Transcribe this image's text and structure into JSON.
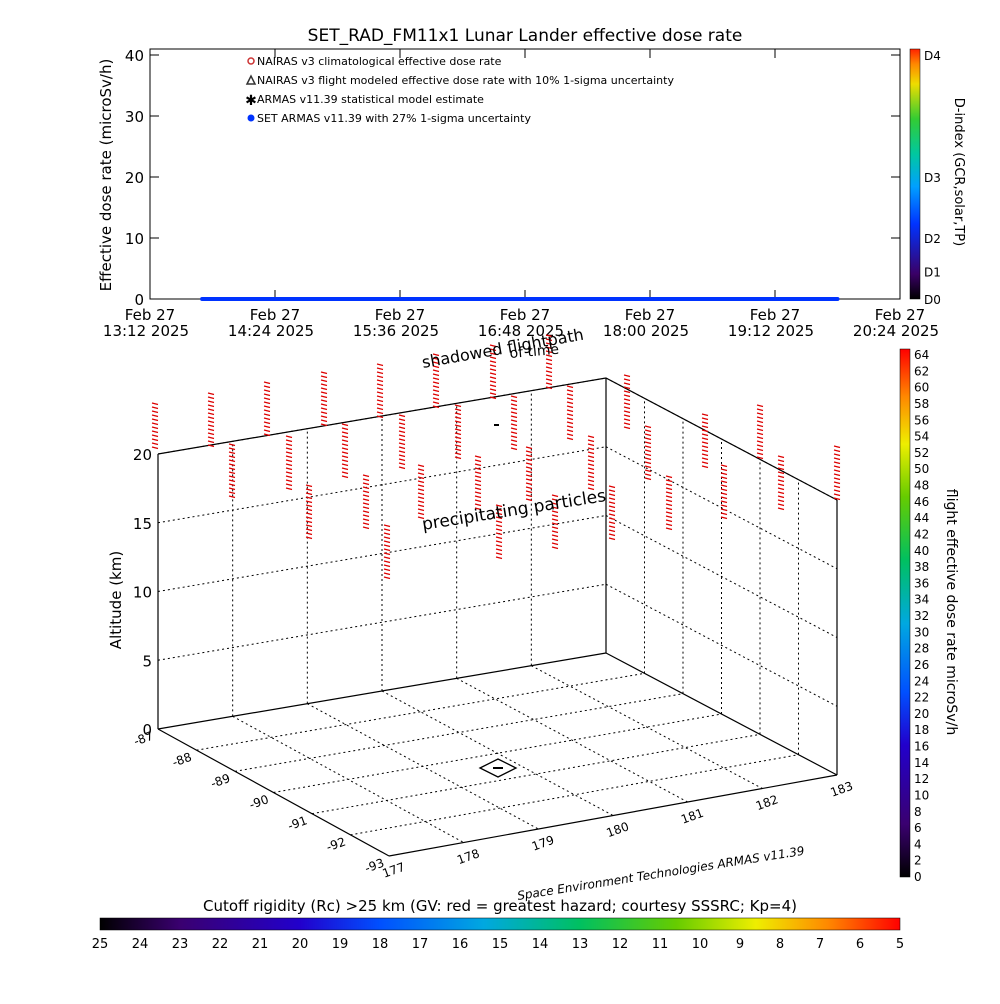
{
  "chart_data": [
    {
      "type": "line",
      "title": "SET_RAD_FM11x1  Lunar Lander effective dose rate",
      "ylabel": "Effective dose rate (microSv/h)",
      "ylim": [
        0,
        40
      ],
      "y_ticks": [
        "0",
        "10",
        "20",
        "30",
        "40"
      ],
      "x_ticks": [
        {
          "day": "Feb 27",
          "time": "13:12 2025"
        },
        {
          "day": "Feb 27",
          "time": "14:24 2025"
        },
        {
          "day": "Feb 27",
          "time": "15:36 2025"
        },
        {
          "day": "Feb 27",
          "time": "16:48 2025"
        },
        {
          "day": "Feb 27",
          "time": "18:00 2025"
        },
        {
          "day": "Feb 27",
          "time": "19:12 2025"
        },
        {
          "day": "Feb 27",
          "time": "20:24 2025"
        }
      ],
      "legend_placement": "top-left",
      "legend": [
        {
          "label": "NAIRAS v3 climatological effective dose rate",
          "color": "#cc3333",
          "marker": "circle"
        },
        {
          "label": "NAIRAS v3 flight modeled effective dose rate with 10% 1-sigma uncertainty",
          "color": "#333333",
          "marker": "triangle"
        },
        {
          "label": "ARMAS v11.39 statistical model estimate",
          "color": "#33cc33",
          "marker": "asterisk"
        },
        {
          "label": "SET ARMAS v11.39 with 27% 1-sigma uncertainty",
          "color": "#0033ff",
          "marker": "dot"
        }
      ],
      "series": [
        {
          "name": "SET ARMAS v11.39 with 27% 1-sigma uncertainty",
          "x": [
            "13:42",
            "19:48"
          ],
          "values": [
            0,
            0
          ]
        }
      ],
      "dindex_colorbar": {
        "title": "D-index (GCR,solar,TP)",
        "labels": [
          {
            "label": "D4",
            "value": 40
          },
          {
            "label": "D3",
            "value": 20
          },
          {
            "label": "D2",
            "value": 10
          },
          {
            "label": "D1",
            "value": 4.5
          },
          {
            "label": "D0",
            "value": 0
          }
        ]
      }
    },
    {
      "type": "scatter",
      "annotations": [
        "shadowed flightpath",
        "of time",
        "precipitating particles",
        "Space Environment Technologies ARMAS v11.39"
      ],
      "zlabel": "Altitude (km)",
      "zlim": [
        0,
        20
      ],
      "z_ticks": [
        "0",
        "5",
        "10",
        "15",
        "20"
      ],
      "lon_ticks": [
        "177",
        "178",
        "179",
        "180",
        "181",
        "182",
        "183"
      ],
      "lat_ticks": [
        "-87",
        "-88",
        "-89",
        "-90",
        "-91",
        "-92",
        "-93"
      ],
      "marker_color": "#dd0000",
      "colorbar": {
        "title": "flight effective dose rate microSv/h",
        "range": [
          0,
          64
        ],
        "labels": [
          "64",
          "62",
          "60",
          "58",
          "56",
          "54",
          "52",
          "50",
          "48",
          "46",
          "44",
          "42",
          "40",
          "38",
          "36",
          "34",
          "32",
          "30",
          "28",
          "26",
          "24",
          "22",
          "20",
          "18",
          "16",
          "14",
          "12",
          "10",
          "8",
          "6",
          "4",
          "2",
          "0"
        ]
      }
    },
    {
      "type": "heatmap",
      "title": "Cutoff rigidity (Rc) >25 km (GV: red = greatest hazard; courtesy SSSRC; Kp=4)",
      "labels": [
        "25",
        "24",
        "23",
        "22",
        "21",
        "20",
        "19",
        "18",
        "17",
        "16",
        "15",
        "14",
        "13",
        "12",
        "11",
        "10",
        "9",
        "8",
        "7",
        "6",
        "5"
      ]
    }
  ]
}
